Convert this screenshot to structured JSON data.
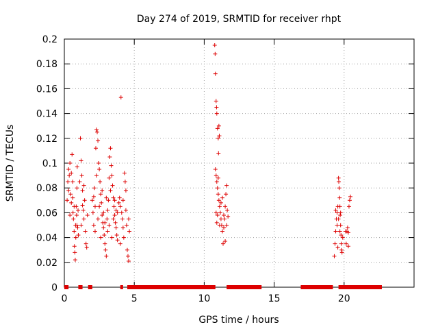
{
  "chart_data": {
    "type": "scatter",
    "title": "Day 274 of 2019, SRMTID for receiver rhpt",
    "xlabel": "GPS time / hours",
    "ylabel": "SRMTID / TECUs",
    "xlim": [
      0,
      25
    ],
    "ylim": [
      0,
      0.2
    ],
    "xticks": [
      0,
      5,
      10,
      15,
      20
    ],
    "yticks": [
      0,
      0.02,
      0.04,
      0.06,
      0.08,
      0.1,
      0.12,
      0.14,
      0.16,
      0.18,
      0.2
    ],
    "xtick_labels": [
      "0",
      "5",
      "10",
      "15",
      "20"
    ],
    "ytick_labels": [
      "0",
      "0.02",
      "0.04",
      "0.06",
      "0.08",
      "0.1",
      "0.12",
      "0.14",
      "0.16",
      "0.18",
      "0.2"
    ],
    "grid": true,
    "marker": "+",
    "color": "#dd0000",
    "series": [
      {
        "name": "SRMTID",
        "points": [
          [
            0.2,
            0.07
          ],
          [
            0.25,
            0.085
          ],
          [
            0.3,
            0.095
          ],
          [
            0.35,
            0.09
          ],
          [
            0.4,
            0.1
          ],
          [
            0.45,
            0.075
          ],
          [
            0.5,
            0.068
          ],
          [
            0.55,
            0.107
          ],
          [
            0.6,
            0.085
          ],
          [
            0.62,
            0.06
          ],
          [
            0.65,
            0.055
          ],
          [
            0.7,
            0.045
          ],
          [
            0.72,
            0.033
          ],
          [
            0.75,
            0.028
          ],
          [
            0.78,
            0.022
          ],
          [
            0.8,
            0.05
          ],
          [
            0.82,
            0.04
          ],
          [
            0.85,
            0.065
          ],
          [
            0.88,
            0.058
          ],
          [
            0.9,
            0.08
          ],
          [
            0.92,
            0.097
          ],
          [
            0.95,
            0.048
          ],
          [
            0.98,
            0.062
          ],
          [
            1.0,
            0.042
          ],
          [
            0.3,
            0.078
          ],
          [
            0.4,
            0.058
          ],
          [
            0.5,
            0.092
          ],
          [
            0.6,
            0.072
          ],
          [
            0.7,
            0.065
          ],
          [
            0.9,
            0.05
          ],
          [
            1.1,
            0.085
          ],
          [
            1.15,
            0.12
          ],
          [
            1.2,
            0.102
          ],
          [
            1.25,
            0.09
          ],
          [
            1.3,
            0.078
          ],
          [
            1.35,
            0.062
          ],
          [
            1.4,
            0.055
          ],
          [
            1.45,
            0.07
          ],
          [
            1.5,
            0.045
          ],
          [
            1.55,
            0.035
          ],
          [
            1.6,
            0.032
          ],
          [
            1.65,
            0.058
          ],
          [
            1.2,
            0.05
          ],
          [
            1.3,
            0.066
          ],
          [
            1.4,
            0.082
          ],
          [
            2.0,
            0.07
          ],
          [
            2.05,
            0.06
          ],
          [
            2.1,
            0.05
          ],
          [
            2.15,
            0.08
          ],
          [
            2.2,
            0.065
          ],
          [
            2.25,
            0.112
          ],
          [
            2.3,
            0.127
          ],
          [
            2.35,
            0.125
          ],
          [
            2.4,
            0.118
          ],
          [
            2.45,
            0.1
          ],
          [
            2.5,
            0.095
          ],
          [
            2.55,
            0.085
          ],
          [
            2.6,
            0.075
          ],
          [
            2.65,
            0.068
          ],
          [
            2.7,
            0.058
          ],
          [
            2.75,
            0.052
          ],
          [
            2.8,
            0.048
          ],
          [
            2.85,
            0.042
          ],
          [
            2.9,
            0.035
          ],
          [
            2.95,
            0.03
          ],
          [
            3.0,
            0.025
          ],
          [
            3.05,
            0.055
          ],
          [
            3.1,
            0.062
          ],
          [
            3.15,
            0.07
          ],
          [
            3.2,
            0.088
          ],
          [
            3.25,
            0.105
          ],
          [
            3.3,
            0.112
          ],
          [
            3.35,
            0.098
          ],
          [
            3.4,
            0.09
          ],
          [
            3.45,
            0.082
          ],
          [
            3.5,
            0.072
          ],
          [
            3.55,
            0.065
          ],
          [
            3.6,
            0.058
          ],
          [
            3.65,
            0.052
          ],
          [
            3.7,
            0.048
          ],
          [
            3.75,
            0.042
          ],
          [
            3.8,
            0.038
          ],
          [
            2.2,
            0.045
          ],
          [
            2.4,
            0.055
          ],
          [
            2.6,
            0.04
          ],
          [
            2.8,
            0.06
          ],
          [
            3.0,
            0.072
          ],
          [
            3.2,
            0.05
          ],
          [
            3.4,
            0.04
          ],
          [
            3.6,
            0.07
          ],
          [
            3.8,
            0.06
          ],
          [
            2.1,
            0.073
          ],
          [
            2.3,
            0.09
          ],
          [
            2.5,
            0.065
          ],
          [
            2.7,
            0.078
          ],
          [
            2.9,
            0.052
          ],
          [
            3.1,
            0.045
          ],
          [
            3.3,
            0.078
          ],
          [
            3.5,
            0.055
          ],
          [
            3.7,
            0.062
          ],
          [
            3.9,
            0.068
          ],
          [
            3.95,
            0.072
          ],
          [
            4.0,
            0.065
          ],
          [
            4.05,
            0.153
          ],
          [
            4.1,
            0.06
          ],
          [
            4.15,
            0.055
          ],
          [
            4.2,
            0.048
          ],
          [
            4.25,
            0.04
          ],
          [
            4.3,
            0.092
          ],
          [
            4.35,
            0.085
          ],
          [
            4.4,
            0.078
          ],
          [
            4.45,
            0.05
          ],
          [
            4.5,
            0.03
          ],
          [
            4.55,
            0.025
          ],
          [
            4.6,
            0.021
          ],
          [
            4.65,
            0.045
          ],
          [
            4.0,
            0.035
          ],
          [
            4.2,
            0.07
          ],
          [
            4.4,
            0.062
          ],
          [
            4.6,
            0.055
          ],
          [
            10.75,
            0.195
          ],
          [
            10.78,
            0.188
          ],
          [
            10.8,
            0.172
          ],
          [
            10.85,
            0.15
          ],
          [
            10.88,
            0.145
          ],
          [
            10.9,
            0.14
          ],
          [
            10.95,
            0.128
          ],
          [
            11.0,
            0.12
          ],
          [
            11.02,
            0.108
          ],
          [
            11.05,
            0.13
          ],
          [
            11.08,
            0.122
          ],
          [
            10.8,
            0.095
          ],
          [
            10.85,
            0.09
          ],
          [
            10.9,
            0.085
          ],
          [
            10.95,
            0.08
          ],
          [
            11.0,
            0.075
          ],
          [
            11.05,
            0.07
          ],
          [
            11.1,
            0.065
          ],
          [
            11.15,
            0.06
          ],
          [
            11.2,
            0.055
          ],
          [
            11.25,
            0.05
          ],
          [
            11.3,
            0.045
          ],
          [
            11.35,
            0.035
          ],
          [
            11.4,
            0.048
          ],
          [
            11.45,
            0.055
          ],
          [
            11.5,
            0.065
          ],
          [
            11.55,
            0.075
          ],
          [
            11.6,
            0.082
          ],
          [
            11.65,
            0.062
          ],
          [
            11.7,
            0.057
          ],
          [
            10.85,
            0.06
          ],
          [
            10.9,
            0.052
          ],
          [
            10.95,
            0.058
          ],
          [
            11.0,
            0.088
          ],
          [
            11.1,
            0.05
          ],
          [
            11.2,
            0.068
          ],
          [
            11.3,
            0.072
          ],
          [
            11.4,
            0.058
          ],
          [
            11.5,
            0.037
          ],
          [
            11.6,
            0.05
          ],
          [
            19.3,
            0.025
          ],
          [
            19.35,
            0.035
          ],
          [
            19.4,
            0.045
          ],
          [
            19.45,
            0.055
          ],
          [
            19.5,
            0.06
          ],
          [
            19.55,
            0.065
          ],
          [
            19.6,
            0.088
          ],
          [
            19.62,
            0.085
          ],
          [
            19.65,
            0.08
          ],
          [
            19.68,
            0.072
          ],
          [
            19.7,
            0.065
          ],
          [
            19.72,
            0.058
          ],
          [
            19.75,
            0.05
          ],
          [
            19.78,
            0.042
          ],
          [
            19.8,
            0.035
          ],
          [
            19.82,
            0.03
          ],
          [
            19.85,
            0.028
          ],
          [
            19.9,
            0.04
          ],
          [
            19.5,
            0.05
          ],
          [
            19.6,
            0.055
          ],
          [
            19.7,
            0.045
          ],
          [
            19.4,
            0.062
          ],
          [
            19.55,
            0.032
          ],
          [
            19.75,
            0.06
          ],
          [
            20.1,
            0.045
          ],
          [
            20.15,
            0.035
          ],
          [
            20.2,
            0.045
          ],
          [
            20.25,
            0.048
          ],
          [
            20.3,
            0.033
          ],
          [
            20.35,
            0.065
          ],
          [
            20.4,
            0.07
          ],
          [
            20.45,
            0.073
          ],
          [
            20.3,
            0.044
          ]
        ]
      }
    ],
    "zero_value_intervals": [
      [
        0.0,
        0.3
      ],
      [
        1.0,
        1.3
      ],
      [
        1.7,
        2.0
      ],
      [
        4.0,
        4.2
      ],
      [
        4.5,
        10.8
      ],
      [
        11.6,
        14.1
      ],
      [
        16.9,
        19.2
      ],
      [
        19.6,
        22.7
      ]
    ]
  }
}
